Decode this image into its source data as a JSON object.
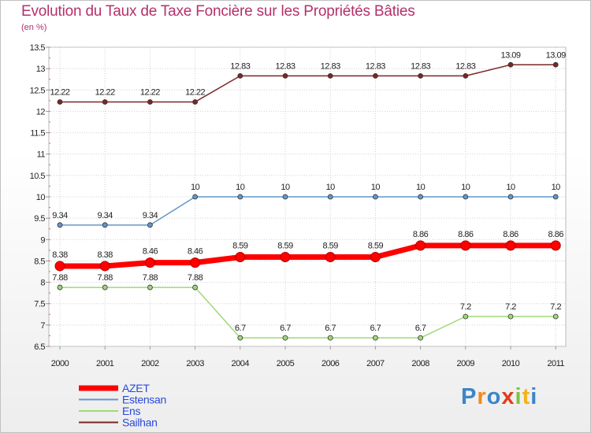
{
  "chart_data": {
    "type": "line",
    "title": "Evolution du Taux de Taxe Foncière sur les Propriétés Bâties",
    "ylabel": "(en %)",
    "xlabel": "",
    "ylim": [
      6.5,
      13.5
    ],
    "yticks": [
      "6.5",
      "7",
      "7.5",
      "8",
      "8.5",
      "9",
      "9.5",
      "10",
      "10.5",
      "11",
      "11.5",
      "12",
      "12.5",
      "13",
      "13.5"
    ],
    "categories": [
      "2000",
      "2001",
      "2002",
      "2003",
      "2004",
      "2005",
      "2006",
      "2007",
      "2008",
      "2009",
      "2010",
      "2011"
    ],
    "series": [
      {
        "name": "Sailhan",
        "color": "#7b2626",
        "values": [
          12.22,
          12.22,
          12.22,
          12.22,
          12.83,
          12.83,
          12.83,
          12.83,
          12.83,
          12.83,
          13.09,
          13.09
        ],
        "labels": [
          "12.22",
          "12.22",
          "12.22",
          "12.22",
          "12.83",
          "12.83",
          "12.83",
          "12.83",
          "12.83",
          "12.83",
          "13.09",
          "13.09"
        ]
      },
      {
        "name": "Estensan",
        "color": "#6496c8",
        "values": [
          9.34,
          9.34,
          9.34,
          10,
          10,
          10,
          10,
          10,
          10,
          10,
          10,
          10
        ],
        "labels": [
          "9.34",
          "9.34",
          "9.34",
          "10",
          "10",
          "10",
          "10",
          "10",
          "10",
          "10",
          "10",
          "10"
        ]
      },
      {
        "name": "AZET",
        "color": "#ff0000",
        "values": [
          8.38,
          8.38,
          8.46,
          8.46,
          8.59,
          8.59,
          8.59,
          8.59,
          8.86,
          8.86,
          8.86,
          8.86
        ],
        "labels": [
          "8.38",
          "8.38",
          "8.46",
          "8.46",
          "8.59",
          "8.59",
          "8.59",
          "8.59",
          "8.86",
          "8.86",
          "8.86",
          "8.86"
        ]
      },
      {
        "name": "Ens",
        "color": "#a0d878",
        "values": [
          7.88,
          7.88,
          7.88,
          7.88,
          6.7,
          6.7,
          6.7,
          6.7,
          6.7,
          7.2,
          7.2,
          7.2
        ],
        "labels": [
          "7.88",
          "7.88",
          "7.88",
          "7.88",
          "6.7",
          "6.7",
          "6.7",
          "6.7",
          "6.7",
          "7.2",
          "7.2",
          "7.2"
        ]
      }
    ],
    "legend": [
      {
        "name": "AZET",
        "color": "#ff0000"
      },
      {
        "name": "Estensan",
        "color": "#6496c8"
      },
      {
        "name": "Ens",
        "color": "#a0d878"
      },
      {
        "name": "Sailhan",
        "color": "#7b2626"
      }
    ],
    "legend_placement": "bottom-left",
    "grid": true
  },
  "branding": {
    "logo_letters": [
      "P",
      "r",
      "o",
      "x",
      "i",
      "t",
      "i"
    ],
    "logo_colors": [
      "#3a86c8",
      "#f08a1c",
      "#3a86c8",
      "#e23a1e",
      "#7cc243",
      "#f3b21b",
      "#3a86c8"
    ]
  }
}
